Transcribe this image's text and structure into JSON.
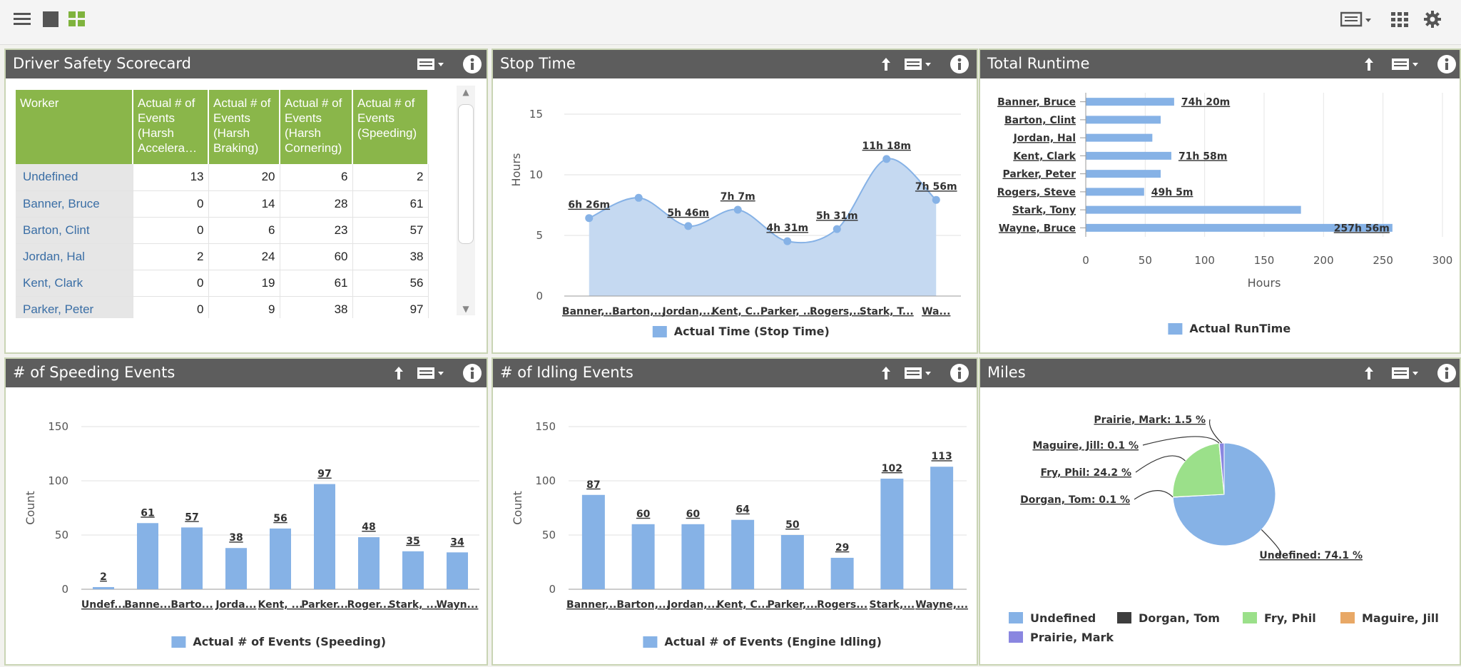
{
  "toolbar": {
    "left_icons": [
      "hamburger-menu-icon",
      "single-layout-icon",
      "grid-layout-icon"
    ],
    "right_icons": [
      "list-view-icon",
      "apps-grid-icon",
      "settings-gear-icon"
    ]
  },
  "colors": {
    "bar": "#86b2e6",
    "header": "#5d5d5d",
    "table_header": "#8ab64a",
    "link": "#3a6ea5"
  },
  "panels": {
    "scorecard": {
      "title": "Driver Safety Scorecard",
      "columns": [
        [
          "Worker"
        ],
        [
          "Actual # of",
          "Events",
          "(Harsh",
          "Accelera…"
        ],
        [
          "Actual # of",
          "Events",
          "(Harsh",
          "Braking)"
        ],
        [
          "Actual # of",
          "Events",
          "(Harsh",
          "Cornering)"
        ],
        [
          "Actual # of",
          "Events",
          "(Speeding)"
        ]
      ],
      "rows": [
        [
          "Undefined",
          "13",
          "20",
          "6",
          "2"
        ],
        [
          "Banner, Bruce",
          "0",
          "14",
          "28",
          "61"
        ],
        [
          "Barton, Clint",
          "0",
          "6",
          "23",
          "57"
        ],
        [
          "Jordan, Hal",
          "2",
          "24",
          "60",
          "38"
        ],
        [
          "Kent, Clark",
          "0",
          "19",
          "61",
          "56"
        ],
        [
          "Parker, Peter",
          "0",
          "9",
          "38",
          "97"
        ]
      ]
    },
    "stop_time": {
      "title": "Stop Time"
    },
    "total_runtime": {
      "title": "Total Runtime"
    },
    "speeding": {
      "title": "# of Speeding Events"
    },
    "idling": {
      "title": "# of Idling Events"
    },
    "miles": {
      "title": "Miles"
    }
  },
  "chart_data": [
    {
      "id": "stop_time",
      "type": "area",
      "categories": [
        "Banner,...",
        "Barton,...",
        "Jordan,...",
        "Kent, C...",
        "Parker, ...",
        "Rogers,...",
        "Stark, T...",
        "Wa..."
      ],
      "values": [
        6.43,
        8.1,
        5.77,
        7.12,
        4.52,
        5.52,
        11.3,
        7.93
      ],
      "labels": [
        "6h 26m",
        "",
        "5h 46m",
        "7h 7m",
        "4h 31m",
        "5h 31m",
        "11h 18m",
        "7h 56m"
      ],
      "ylabel": "Hours",
      "ylim": [
        0,
        15
      ],
      "yticks": [
        0,
        5,
        10,
        15
      ],
      "legend": "Actual Time (Stop Time)",
      "grid": true
    },
    {
      "id": "total_runtime",
      "type": "bar",
      "orientation": "horizontal",
      "categories": [
        "Banner, Bruce",
        "Barton, Clint",
        "Jordan, Hal",
        "Kent, Clark",
        "Parker, Peter",
        "Rogers, Steve",
        "Stark, Tony",
        "Wayne, Bruce"
      ],
      "values": [
        74.33,
        63,
        56,
        71.97,
        63,
        49.08,
        181,
        257.93
      ],
      "labels": [
        "74h 20m",
        "",
        "",
        "71h 58m",
        "",
        "49h 5m",
        "",
        "257h 56m"
      ],
      "xlabel": "Hours",
      "xlim": [
        0,
        300
      ],
      "xticks": [
        0,
        50,
        100,
        150,
        200,
        250,
        300
      ],
      "legend": "Actual RunTime",
      "grid": true
    },
    {
      "id": "speeding",
      "type": "bar",
      "categories": [
        "Undef...",
        "Banne...",
        "Barto...",
        "Jorda...",
        "Kent, ...",
        "Parker...",
        "Roger...",
        "Stark, ...",
        "Wayn..."
      ],
      "values": [
        2,
        61,
        57,
        38,
        56,
        97,
        48,
        35,
        34
      ],
      "ylabel": "Count",
      "ylim": [
        0,
        150
      ],
      "yticks": [
        0,
        50,
        100,
        150
      ],
      "legend": "Actual # of Events (Speeding)",
      "grid": true
    },
    {
      "id": "idling",
      "type": "bar",
      "categories": [
        "Banner,...",
        "Barton,...",
        "Jordan,...",
        "Kent, C...",
        "Parker,...",
        "Rogers...",
        "Stark,...",
        "Wayne,..."
      ],
      "values": [
        87,
        60,
        60,
        64,
        50,
        29,
        102,
        113
      ],
      "ylabel": "Count",
      "ylim": [
        0,
        150
      ],
      "yticks": [
        0,
        50,
        100,
        150
      ],
      "legend": "Actual # of Events (Engine Idling)",
      "grid": true
    },
    {
      "id": "miles",
      "type": "pie",
      "slices": [
        {
          "name": "Undefined",
          "value": 74.1,
          "label": "Undefined: 74.1 %",
          "color": "#86b2e6"
        },
        {
          "name": "Dorgan, Tom",
          "value": 0.1,
          "label": "Dorgan, Tom: 0.1 %",
          "color": "#3d3d3d"
        },
        {
          "name": "Fry, Phil",
          "value": 24.2,
          "label": "Fry, Phil: 24.2 %",
          "color": "#9be08a"
        },
        {
          "name": "Maguire, Jill",
          "value": 0.1,
          "label": "Maguire, Jill: 0.1 %",
          "color": "#e8a866"
        },
        {
          "name": "Prairie, Mark",
          "value": 1.5,
          "label": "Prairie, Mark: 1.5 %",
          "color": "#8a86e0"
        }
      ],
      "legend_placement": "bottom"
    }
  ]
}
